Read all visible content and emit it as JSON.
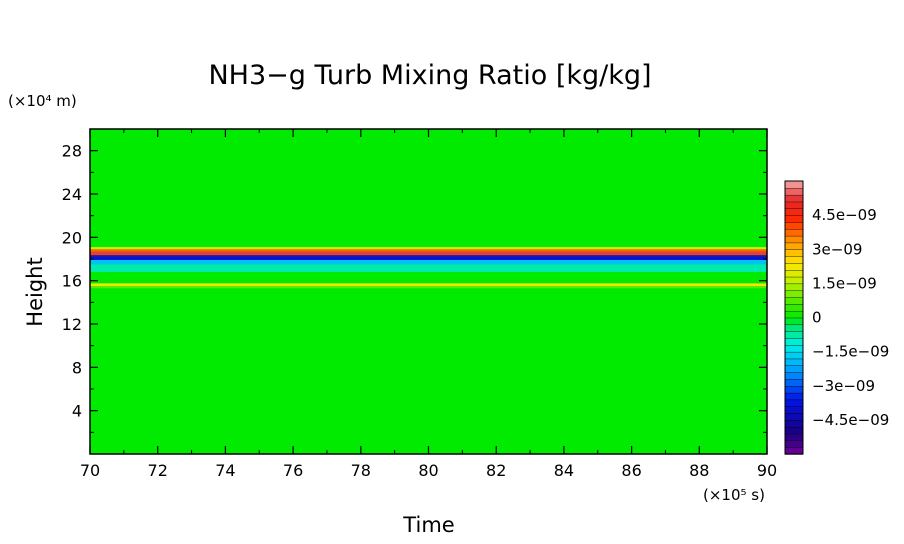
{
  "chart_data": {
    "type": "heatmap",
    "title": "NH3−g Turb Mixing Ratio [kg/kg]",
    "xlabel": "Time",
    "ylabel": "Height",
    "x_unit": "(×10⁵ s)",
    "y_unit": "(×10⁴ m)",
    "xlim": [
      70,
      90
    ],
    "ylim": [
      0,
      30
    ],
    "x_ticks": [
      70,
      72,
      74,
      76,
      78,
      80,
      82,
      84,
      86,
      88,
      90
    ],
    "x_tick_labels": [
      "70",
      "72",
      "74",
      "76",
      "78",
      "80",
      "82",
      "84",
      "86",
      "88",
      "90"
    ],
    "y_ticks": [
      4,
      8,
      12,
      16,
      20,
      24,
      28
    ],
    "y_tick_labels": [
      "4",
      "8",
      "12",
      "16",
      "20",
      "24",
      "28"
    ],
    "background_value": 0,
    "bands": [
      {
        "y0": 18.35,
        "y1": 18.7,
        "value": 5.3e-09
      },
      {
        "y0": 18.7,
        "y1": 18.9,
        "value": 3.8e-09
      },
      {
        "y0": 18.9,
        "y1": 19.1,
        "value": 1.8e-09
      },
      {
        "y0": 18.2,
        "y1": 18.35,
        "value": -5.3e-09
      },
      {
        "y0": 17.9,
        "y1": 18.2,
        "value": -3.6e-09
      },
      {
        "y0": 17.5,
        "y1": 17.9,
        "value": -1.8e-09
      },
      {
        "y0": 16.8,
        "y1": 17.5,
        "value": -8e-10
      },
      {
        "y0": 15.5,
        "y1": 15.75,
        "value": 2.2e-09
      },
      {
        "y0": 15.3,
        "y1": 15.5,
        "value": 8e-10
      }
    ],
    "colorbar": {
      "min": -6e-09,
      "max": 6e-09,
      "step": 3e-10,
      "tick_values": [
        4.5e-09,
        3e-09,
        1.5e-09,
        0,
        -1.5e-09,
        -3e-09,
        -4.5e-09
      ],
      "tick_labels": [
        "4.5e−09",
        "3e−09",
        "1.5e−09",
        "0",
        "−1.5e−09",
        "−3e−09",
        "−4.5e−09"
      ]
    }
  }
}
